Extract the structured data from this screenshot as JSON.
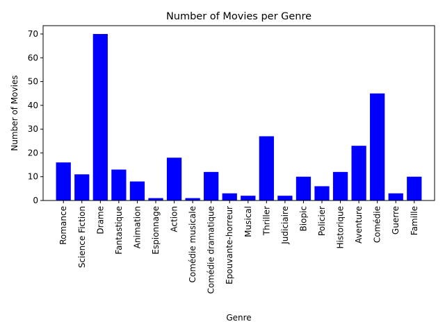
{
  "chart_data": {
    "type": "bar",
    "title": "Number of Movies per Genre",
    "xlabel": "Genre",
    "ylabel": "Number of Movies",
    "categories": [
      "Romance",
      "Science Fiction",
      "Drame",
      "Fantastique",
      "Animation",
      "Espionnage",
      "Action",
      "Comédie musicale",
      "Comédie dramatique",
      "Epouvante-horreur",
      "Musical",
      "Thriller",
      "Judiciaire",
      "Biopic",
      "Policier",
      "Historique",
      "Aventure",
      "Comédie",
      "Guerre",
      "Famille"
    ],
    "values": [
      16,
      11,
      70,
      13,
      8,
      1,
      18,
      1,
      12,
      3,
      2,
      27,
      2,
      10,
      6,
      12,
      23,
      45,
      3,
      10
    ],
    "ylim": [
      0,
      73.5
    ],
    "yticks": [
      0,
      10,
      20,
      30,
      40,
      50,
      60,
      70
    ],
    "bar_color": "#0000ff",
    "grid": false,
    "legend": "none"
  }
}
